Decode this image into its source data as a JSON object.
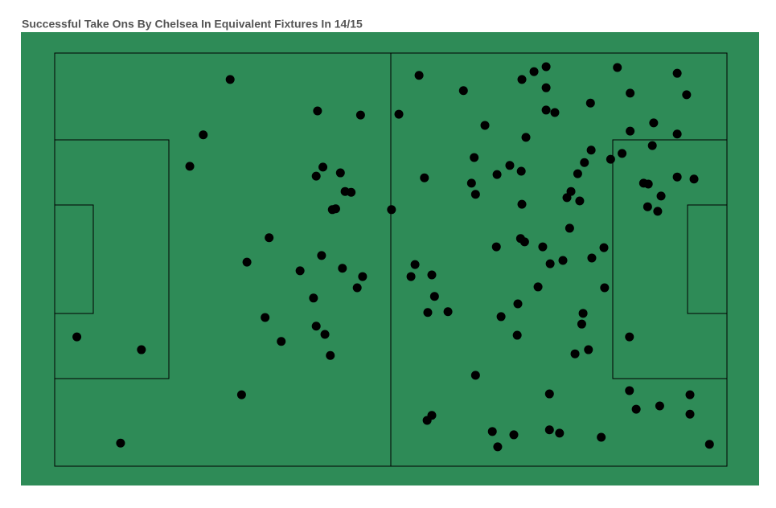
{
  "chart_data": {
    "type": "scatter",
    "title": "Successful Take Ons By Chelsea In Equivalent Fixtures In 14/15",
    "x": [
      26.1,
      39.1,
      45.5,
      22.1,
      20.1,
      39.9,
      38.9,
      42.5,
      43.2,
      44.1,
      41.3,
      41.8,
      31.9,
      28.6,
      39.7,
      36.5,
      42.8,
      45.8,
      45.0,
      38.5,
      31.3,
      38.9,
      40.2,
      33.7,
      41.0,
      3.3,
      12.9,
      27.8,
      9.8,
      51.2,
      50.1,
      54.2,
      60.8,
      64.0,
      55.0,
      62.4,
      62.0,
      62.6,
      65.8,
      67.7,
      69.4,
      69.5,
      71.3,
      73.1,
      73.1,
      73.1,
      74.4,
      70.1,
      79.7,
      83.7,
      85.6,
      92.6,
      94.0,
      89.1,
      85.6,
      92.6,
      88.9,
      84.4,
      82.7,
      79.8,
      78.8,
      77.8,
      76.8,
      76.2,
      78.1,
      69.5,
      87.6,
      88.3,
      92.6,
      95.1,
      90.2,
      88.2,
      89.7,
      76.6,
      69.3,
      69.9,
      65.7,
      72.6,
      81.7,
      79.9,
      75.6,
      73.7,
      53.6,
      53.0,
      56.1,
      56.5,
      55.5,
      58.5,
      71.9,
      81.8,
      68.9,
      66.4,
      78.6,
      78.4,
      68.8,
      85.5,
      79.4,
      77.4,
      62.6,
      73.6,
      85.5,
      94.5,
      86.5,
      90.0,
      94.5,
      56.1,
      55.4,
      65.1,
      68.3,
      65.9,
      73.6,
      75.1,
      81.3,
      97.4
    ],
    "y": [
      93.6,
      86.0,
      85.0,
      80.2,
      72.6,
      72.4,
      70.2,
      71.0,
      66.5,
      66.3,
      62.1,
      62.3,
      55.3,
      49.4,
      51.0,
      47.3,
      47.9,
      45.9,
      43.2,
      40.7,
      36.0,
      33.9,
      31.9,
      30.2,
      26.8,
      31.3,
      28.2,
      17.3,
      5.6,
      85.2,
      62.1,
      94.6,
      90.9,
      82.5,
      69.8,
      74.7,
      68.5,
      65.8,
      70.6,
      72.8,
      71.4,
      93.6,
      95.5,
      96.7,
      91.6,
      86.2,
      85.6,
      79.6,
      87.9,
      96.5,
      90.3,
      95.1,
      89.9,
      83.1,
      81.1,
      80.4,
      77.6,
      75.7,
      74.3,
      76.5,
      73.5,
      70.8,
      66.5,
      65.0,
      64.2,
      63.4,
      68.5,
      68.3,
      70.0,
      69.5,
      65.4,
      62.8,
      61.7,
      57.6,
      55.1,
      54.3,
      53.1,
      53.1,
      52.9,
      50.4,
      49.8,
      49.0,
      48.8,
      45.9,
      46.3,
      41.1,
      37.2,
      37.4,
      43.4,
      43.2,
      39.3,
      36.2,
      37.0,
      34.4,
      31.7,
      31.3,
      28.2,
      27.2,
      22.0,
      17.5,
      18.3,
      17.3,
      13.8,
      14.6,
      12.6,
      12.3,
      11.1,
      8.4,
      7.6,
      4.7,
      8.8,
      8.0,
      7.0,
      5.3
    ],
    "xlim": [
      0,
      100
    ],
    "ylim": [
      0,
      100
    ],
    "color": "#000000",
    "background": "#2e8b57"
  }
}
